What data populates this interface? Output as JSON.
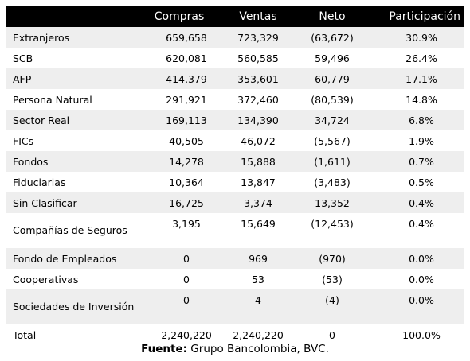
{
  "headers": [
    "",
    "Compras",
    "Ventas",
    "Neto",
    "Participación"
  ],
  "rows": [
    {
      "label": "Extranjeros",
      "compras": "659,658",
      "ventas": "723,329",
      "neto": "(63,672)",
      "part": "30.9%"
    },
    {
      "label": "SCB",
      "compras": "620,081",
      "ventas": "560,585",
      "neto": "59,496",
      "part": "26.4%"
    },
    {
      "label": "AFP",
      "compras": "414,379",
      "ventas": "353,601",
      "neto": "60,779",
      "part": "17.1%"
    },
    {
      "label": "Persona Natural",
      "compras": "291,921",
      "ventas": "372,460",
      "neto": "(80,539)",
      "part": "14.8%"
    },
    {
      "label": "Sector Real",
      "compras": "169,113",
      "ventas": "134,390",
      "neto": "34,724",
      "part": "6.8%"
    },
    {
      "label": "FICs",
      "compras": "40,505",
      "ventas": "46,072",
      "neto": "(5,567)",
      "part": "1.9%"
    },
    {
      "label": "Fondos",
      "compras": "14,278",
      "ventas": "15,888",
      "neto": "(1,611)",
      "part": "0.7%"
    },
    {
      "label": "Fiduciarias",
      "compras": "10,364",
      "ventas": "13,847",
      "neto": "(3,483)",
      "part": "0.5%"
    },
    {
      "label": "Sin Clasificar",
      "compras": "16,725",
      "ventas": "3,374",
      "neto": "13,352",
      "part": "0.4%"
    },
    {
      "label": "Compañías de Seguros",
      "compras": "3,195",
      "ventas": "15,649",
      "neto": "(12,453)",
      "part": "0.4%"
    },
    {
      "label": "Fondo de Empleados",
      "compras": "0",
      "ventas": "969",
      "neto": "(970)",
      "part": "0.0%"
    },
    {
      "label": "Cooperativas",
      "compras": "0",
      "ventas": "53",
      "neto": "(53)",
      "part": "0.0%"
    },
    {
      "label": "Sociedades de Inversión",
      "compras": "0",
      "ventas": "4",
      "neto": "(4)",
      "part": "0.0%"
    },
    {
      "label": "Total",
      "compras": "2,240,220",
      "ventas": "2,240,220",
      "neto": "0",
      "part": "100.0%"
    }
  ],
  "footer": {
    "label": "Fuente:",
    "text": " Grupo Bancolombia, BVC."
  },
  "colors": {
    "header_bg": "#000000",
    "header_text": "#ffffff",
    "stripe": "#eeeeee"
  }
}
